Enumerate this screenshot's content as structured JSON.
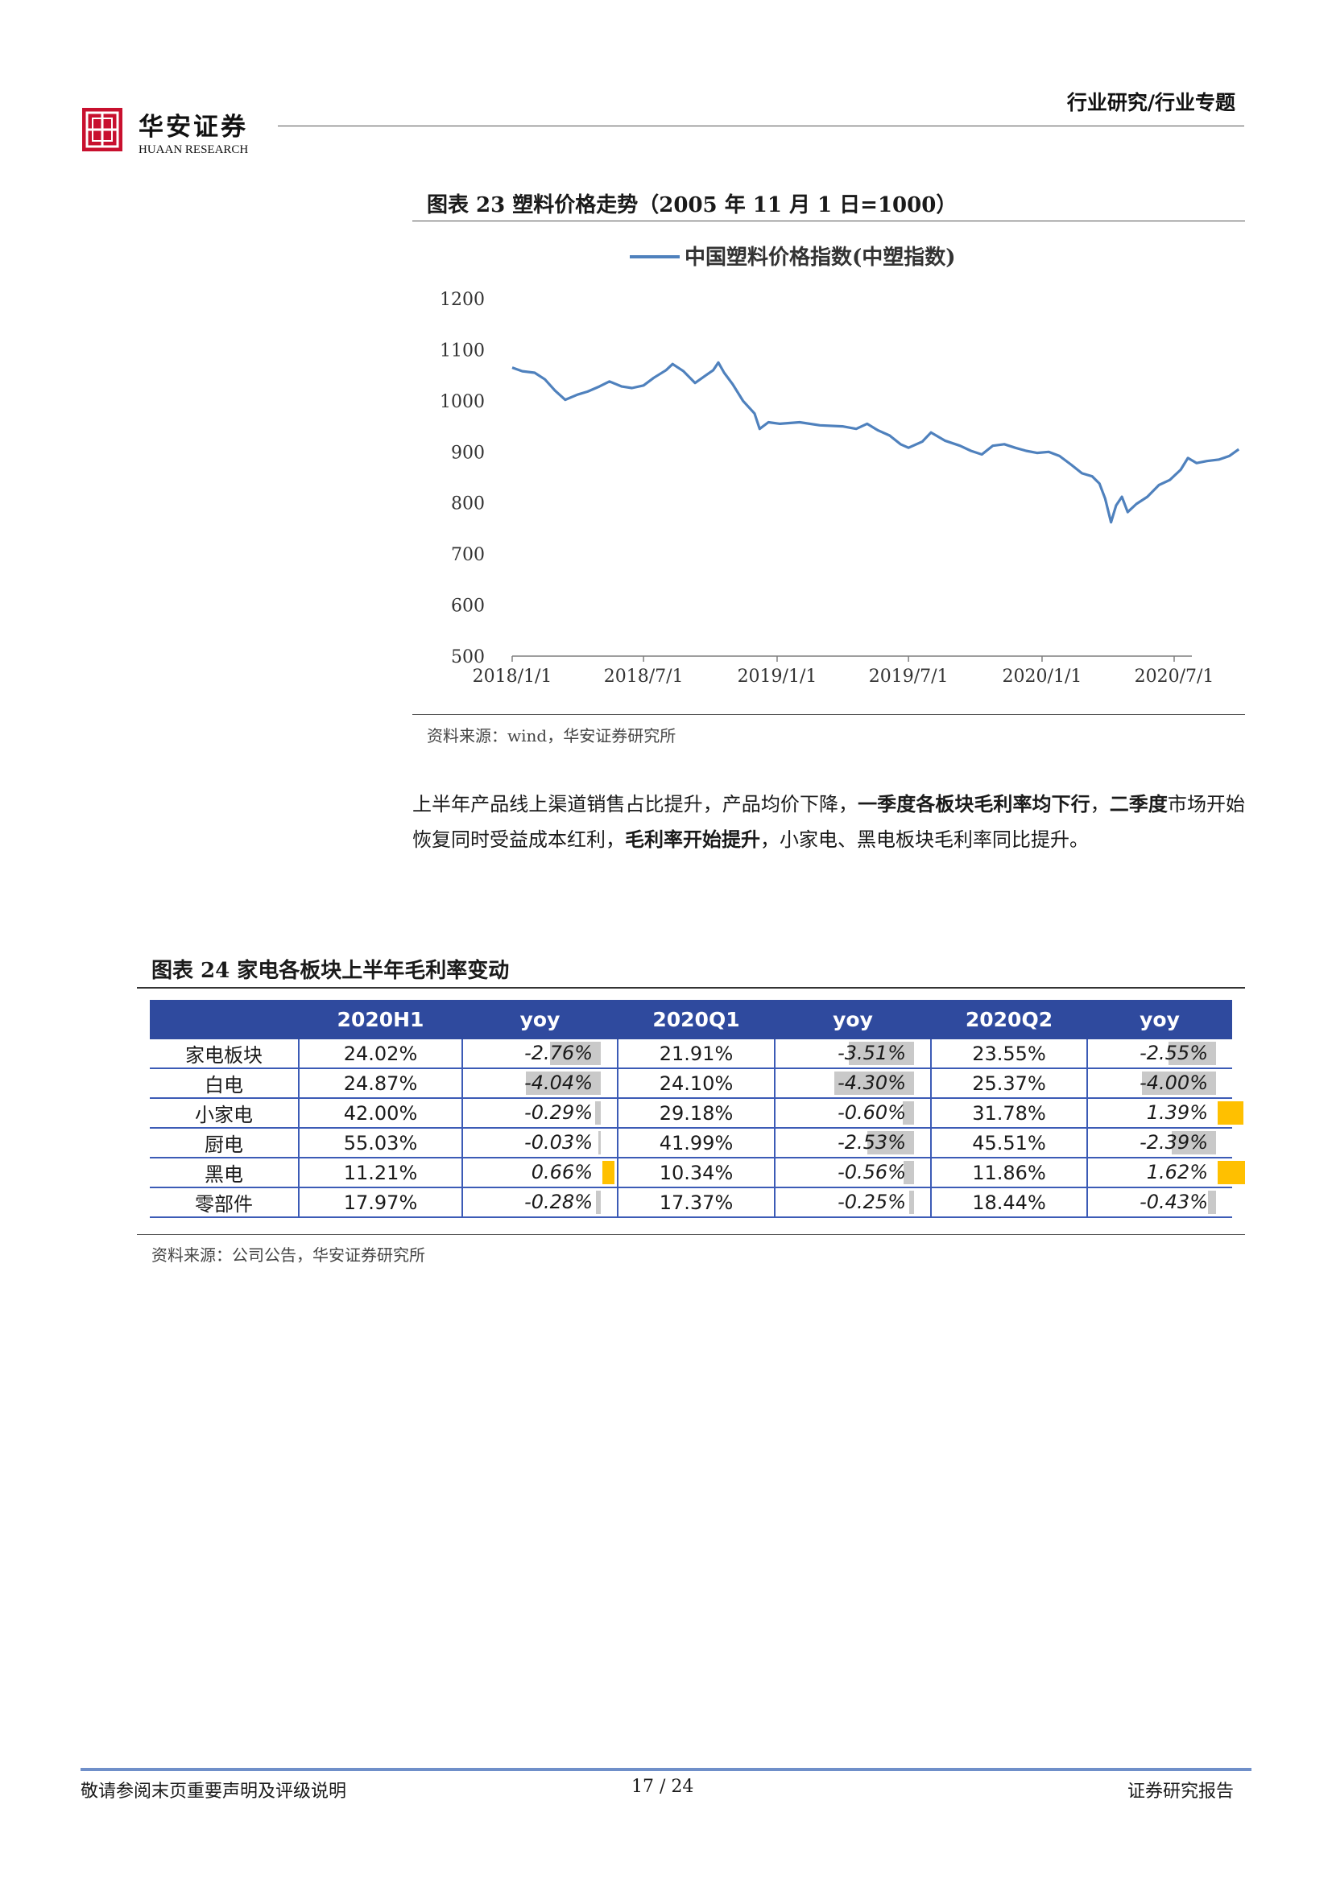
{
  "header": {
    "logo_name": "华安证券",
    "logo_en": "HUAAN RESEARCH",
    "logo_icon": "huaan-seal-logo",
    "category": "行业研究/行业专题",
    "brand_color": "#c8102e"
  },
  "figure23": {
    "title": "图表 23 塑料价格走势（2005 年 11 月 1 日=1000）",
    "source": "资料来源：wind，华安证券研究所"
  },
  "chart_data": {
    "type": "line",
    "title": "",
    "legend_position": "top",
    "grid": false,
    "xlabel": "",
    "ylabel": "",
    "x_ticks": [
      "2018/1/1",
      "2018/7/1",
      "2019/1/1",
      "2019/7/1",
      "2020/1/1",
      "2020/7/1"
    ],
    "y_ticks": [
      500,
      600,
      700,
      800,
      900,
      1000,
      1100,
      1200
    ],
    "ylim": [
      500,
      1200
    ],
    "xlim": [
      "2018/1/1",
      "2020/9/30"
    ],
    "series": [
      {
        "name": "中国塑料价格指数(中塑指数)",
        "color": "#4f81bd",
        "points": [
          [
            "2018/1/1",
            1065
          ],
          [
            "2018/1/15",
            1058
          ],
          [
            "2018/2/1",
            1055
          ],
          [
            "2018/2/15",
            1042
          ],
          [
            "2018/3/1",
            1020
          ],
          [
            "2018/3/15",
            1002
          ],
          [
            "2018/4/1",
            1012
          ],
          [
            "2018/4/15",
            1018
          ],
          [
            "2018/5/1",
            1028
          ],
          [
            "2018/5/15",
            1038
          ],
          [
            "2018/6/1",
            1028
          ],
          [
            "2018/6/15",
            1025
          ],
          [
            "2018/7/1",
            1030
          ],
          [
            "2018/7/15",
            1045
          ],
          [
            "2018/8/1",
            1060
          ],
          [
            "2018/8/10",
            1072
          ],
          [
            "2018/8/25",
            1058
          ],
          [
            "2018/9/10",
            1035
          ],
          [
            "2018/9/25",
            1050
          ],
          [
            "2018/10/5",
            1060
          ],
          [
            "2018/10/12",
            1075
          ],
          [
            "2018/10/20",
            1055
          ],
          [
            "2018/11/1",
            1032
          ],
          [
            "2018/11/15",
            1000
          ],
          [
            "2018/12/1",
            975
          ],
          [
            "2018/12/8",
            945
          ],
          [
            "2018/12/20",
            958
          ],
          [
            "2019/1/5",
            955
          ],
          [
            "2019/2/1",
            958
          ],
          [
            "2019/3/1",
            952
          ],
          [
            "2019/4/1",
            950
          ],
          [
            "2019/4/20",
            945
          ],
          [
            "2019/5/5",
            955
          ],
          [
            "2019/5/20",
            942
          ],
          [
            "2019/6/5",
            932
          ],
          [
            "2019/6/20",
            915
          ],
          [
            "2019/7/1",
            908
          ],
          [
            "2019/7/20",
            920
          ],
          [
            "2019/8/1",
            938
          ],
          [
            "2019/8/20",
            922
          ],
          [
            "2019/9/10",
            912
          ],
          [
            "2019/9/25",
            902
          ],
          [
            "2019/10/10",
            895
          ],
          [
            "2019/10/25",
            912
          ],
          [
            "2019/11/10",
            915
          ],
          [
            "2019/11/25",
            908
          ],
          [
            "2019/12/10",
            902
          ],
          [
            "2019/12/25",
            898
          ],
          [
            "2020/1/10",
            900
          ],
          [
            "2020/1/25",
            892
          ],
          [
            "2020/2/10",
            875
          ],
          [
            "2020/2/25",
            858
          ],
          [
            "2020/3/10",
            852
          ],
          [
            "2020/3/20",
            838
          ],
          [
            "2020/3/28",
            808
          ],
          [
            "2020/4/5",
            762
          ],
          [
            "2020/4/12",
            795
          ],
          [
            "2020/4/20",
            812
          ],
          [
            "2020/4/28",
            782
          ],
          [
            "2020/5/10",
            798
          ],
          [
            "2020/5/25",
            812
          ],
          [
            "2020/6/10",
            835
          ],
          [
            "2020/6/25",
            845
          ],
          [
            "2020/7/10",
            865
          ],
          [
            "2020/7/20",
            888
          ],
          [
            "2020/8/1",
            878
          ],
          [
            "2020/8/15",
            882
          ],
          [
            "2020/9/1",
            885
          ],
          [
            "2020/9/15",
            892
          ],
          [
            "2020/9/28",
            905
          ]
        ]
      }
    ]
  },
  "paragraph": {
    "p1": "上半年产品线上渠道销售占比提升，产品均价下降，",
    "b1": "一季度各板块毛利率均下行",
    "p2": "，",
    "b2": "二季度",
    "p3": "市场开始恢复同时受益成本红利，",
    "b3": "毛利率开始提升",
    "p4": "，小家电、黑电板块毛利率同比提升。"
  },
  "figure24": {
    "title": "图表 24 家电各板块上半年毛利率变动",
    "source": "资料来源：公司公告，华安证券研究所",
    "header_color": "#2f4a9e",
    "neg_bar_color": "#c9c9c9",
    "pos_bar_color": "#ffc000",
    "columns": [
      "",
      "2020H1",
      "yoy",
      "2020Q1",
      "yoy",
      "2020Q2",
      "yoy"
    ],
    "rows": [
      {
        "label": "家电板块",
        "h1": "24.02%",
        "h1_yoy": "-2.76%",
        "q1": "21.91%",
        "q1_yoy": "-3.51%",
        "q2": "23.55%",
        "q2_yoy": "-2.55%"
      },
      {
        "label": "白电",
        "h1": "24.87%",
        "h1_yoy": "-4.04%",
        "q1": "24.10%",
        "q1_yoy": "-4.30%",
        "q2": "25.37%",
        "q2_yoy": "-4.00%"
      },
      {
        "label": "小家电",
        "h1": "42.00%",
        "h1_yoy": "-0.29%",
        "q1": "29.18%",
        "q1_yoy": "-0.60%",
        "q2": "31.78%",
        "q2_yoy": "1.39%"
      },
      {
        "label": "厨电",
        "h1": "55.03%",
        "h1_yoy": "-0.03%",
        "q1": "41.99%",
        "q1_yoy": "-2.53%",
        "q2": "45.51%",
        "q2_yoy": "-2.39%"
      },
      {
        "label": "黑电",
        "h1": "11.21%",
        "h1_yoy": "0.66%",
        "q1": "10.34%",
        "q1_yoy": "-0.56%",
        "q2": "11.86%",
        "q2_yoy": "1.62%"
      },
      {
        "label": "零部件",
        "h1": "17.97%",
        "h1_yoy": "-0.28%",
        "q1": "17.37%",
        "q1_yoy": "-0.25%",
        "q2": "18.44%",
        "q2_yoy": "-0.43%"
      }
    ]
  },
  "footer": {
    "left": "敬请参阅末页重要声明及评级说明",
    "page": "17 / 24",
    "right": "证券研究报告"
  }
}
